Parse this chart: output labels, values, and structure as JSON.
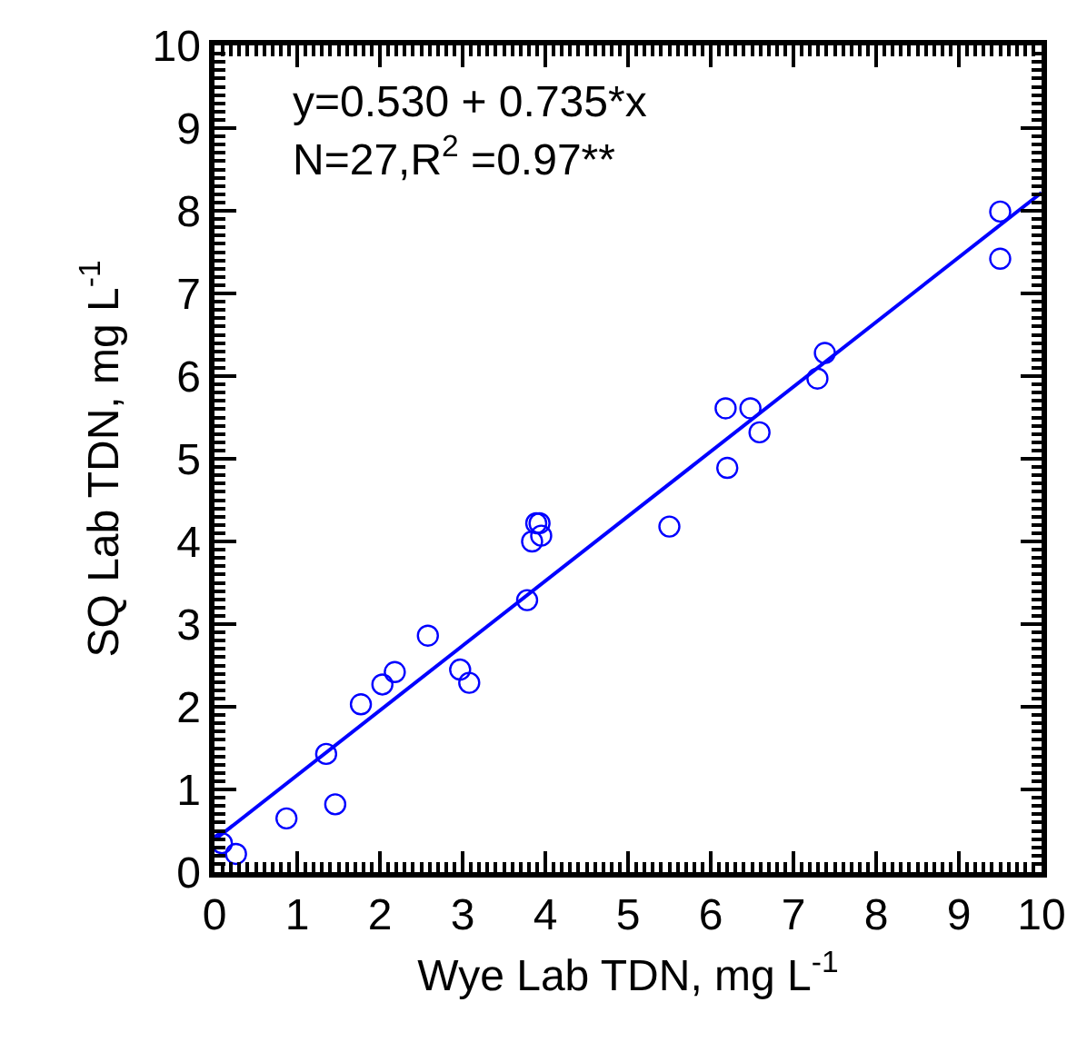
{
  "chart_data": {
    "type": "scatter",
    "xlabel": "Wye Lab TDN, mg L$^{-1}$",
    "ylabel": "SQ Lab TDN, mg L$^{-1}$",
    "xlim": [
      0,
      10
    ],
    "ylim": [
      0,
      10
    ],
    "xticks": [
      0,
      1,
      2,
      3,
      4,
      5,
      6,
      7,
      8,
      9,
      10
    ],
    "yticks": [
      0,
      1,
      2,
      3,
      4,
      5,
      6,
      7,
      8,
      9,
      10
    ],
    "annotations": [
      "y=0.530 + 0.735*x",
      "N=27,R$^{2}$ =0.97**"
    ],
    "series": [
      {
        "marker": "circle",
        "color": "#0000ff",
        "x": [
          0.09,
          0.26,
          0.87,
          1.35,
          1.46,
          1.77,
          2.03,
          2.18,
          2.58,
          2.97,
          3.08,
          3.78,
          3.84,
          3.89,
          3.93,
          3.95,
          5.5,
          6.2,
          6.18,
          6.48,
          6.59,
          7.29,
          7.38,
          9.5,
          9.5
        ],
        "values": [
          0.35,
          0.22,
          0.65,
          1.43,
          0.82,
          2.03,
          2.27,
          2.42,
          2.86,
          2.45,
          2.29,
          3.29,
          4.0,
          4.22,
          4.22,
          4.07,
          4.18,
          4.89,
          5.61,
          5.61,
          5.32,
          5.97,
          6.28,
          7.42,
          7.99
        ]
      },
      {
        "type": "line",
        "marker": "none",
        "line_style": "solid",
        "color": "#0000ff",
        "x": [
          0,
          10
        ],
        "values": [
          0.39,
          8.22
        ]
      }
    ]
  }
}
